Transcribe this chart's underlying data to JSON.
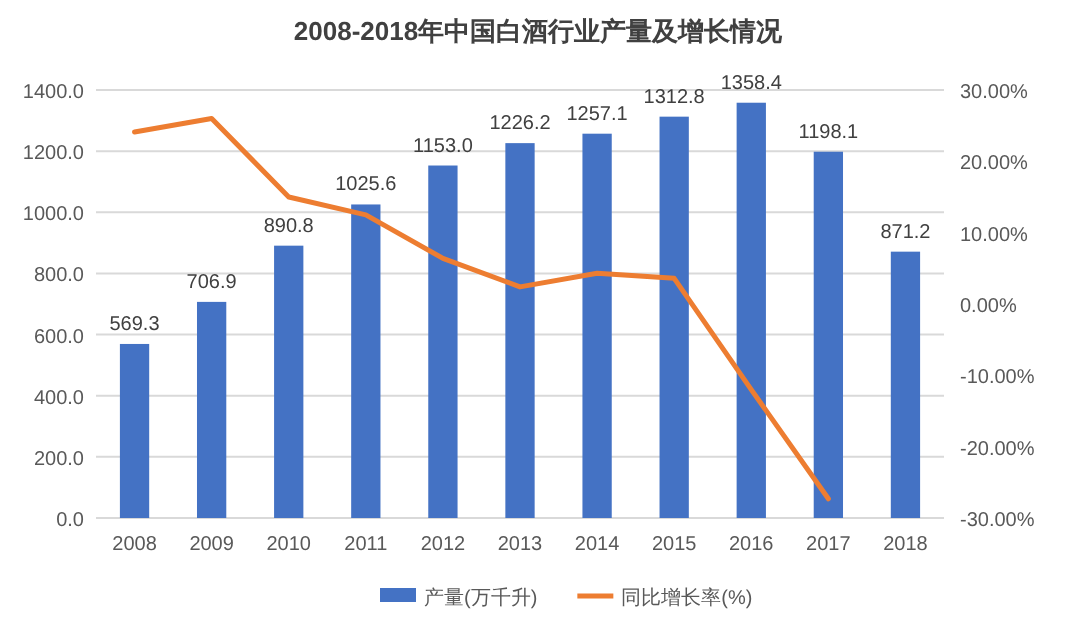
{
  "chart_data": {
    "type": "bar",
    "title": "2008-2018年中国白酒行业产量及增长情况",
    "categories": [
      "2008",
      "2009",
      "2010",
      "2011",
      "2012",
      "2013",
      "2014",
      "2015",
      "2016",
      "2017",
      "2018"
    ],
    "series": [
      {
        "name": "产量(万千升)",
        "color": "#4472c4",
        "values": [
          569.3,
          706.9,
          890.8,
          1025.6,
          1153.0,
          1226.2,
          1257.1,
          1312.8,
          1358.4,
          1198.1,
          871.2
        ],
        "value_labels": [
          "569.3",
          "706.9",
          "890.8",
          "1025.6",
          "1153.0",
          "1226.2",
          "1257.1",
          "1312.8",
          "1358.4",
          "1198.1",
          "871.2"
        ]
      },
      {
        "name": "同比增长率(%)",
        "type": "line",
        "axis": "y2",
        "color": "#ed7d31",
        "values": [
          24.1,
          26.0,
          15.0,
          12.5,
          6.4,
          2.4,
          4.3,
          3.6,
          -12.0,
          -27.3,
          null
        ]
      }
    ],
    "ylim": [
      0,
      1400
    ],
    "yticks": [
      {
        "value": 0,
        "label": "0.0"
      },
      {
        "value": 200,
        "label": "200.0"
      },
      {
        "value": 400,
        "label": "400.0"
      },
      {
        "value": 600,
        "label": "600.0"
      },
      {
        "value": 800,
        "label": "800.0"
      },
      {
        "value": 1000,
        "label": "1000.0"
      },
      {
        "value": 1200,
        "label": "1200.0"
      },
      {
        "value": 1400,
        "label": "1400.0"
      }
    ],
    "y2lim": [
      -30,
      30
    ],
    "y2ticks": [
      {
        "value": -30,
        "label": "-30.00%"
      },
      {
        "value": -20,
        "label": "-20.00%"
      },
      {
        "value": -10,
        "label": "-10.00%"
      },
      {
        "value": 0,
        "label": "0.00%"
      },
      {
        "value": 10,
        "label": "10.00%"
      },
      {
        "value": 20,
        "label": "20.00%"
      },
      {
        "value": 30,
        "label": "30.00%"
      }
    ],
    "grid": "y",
    "legend": "bottom"
  }
}
